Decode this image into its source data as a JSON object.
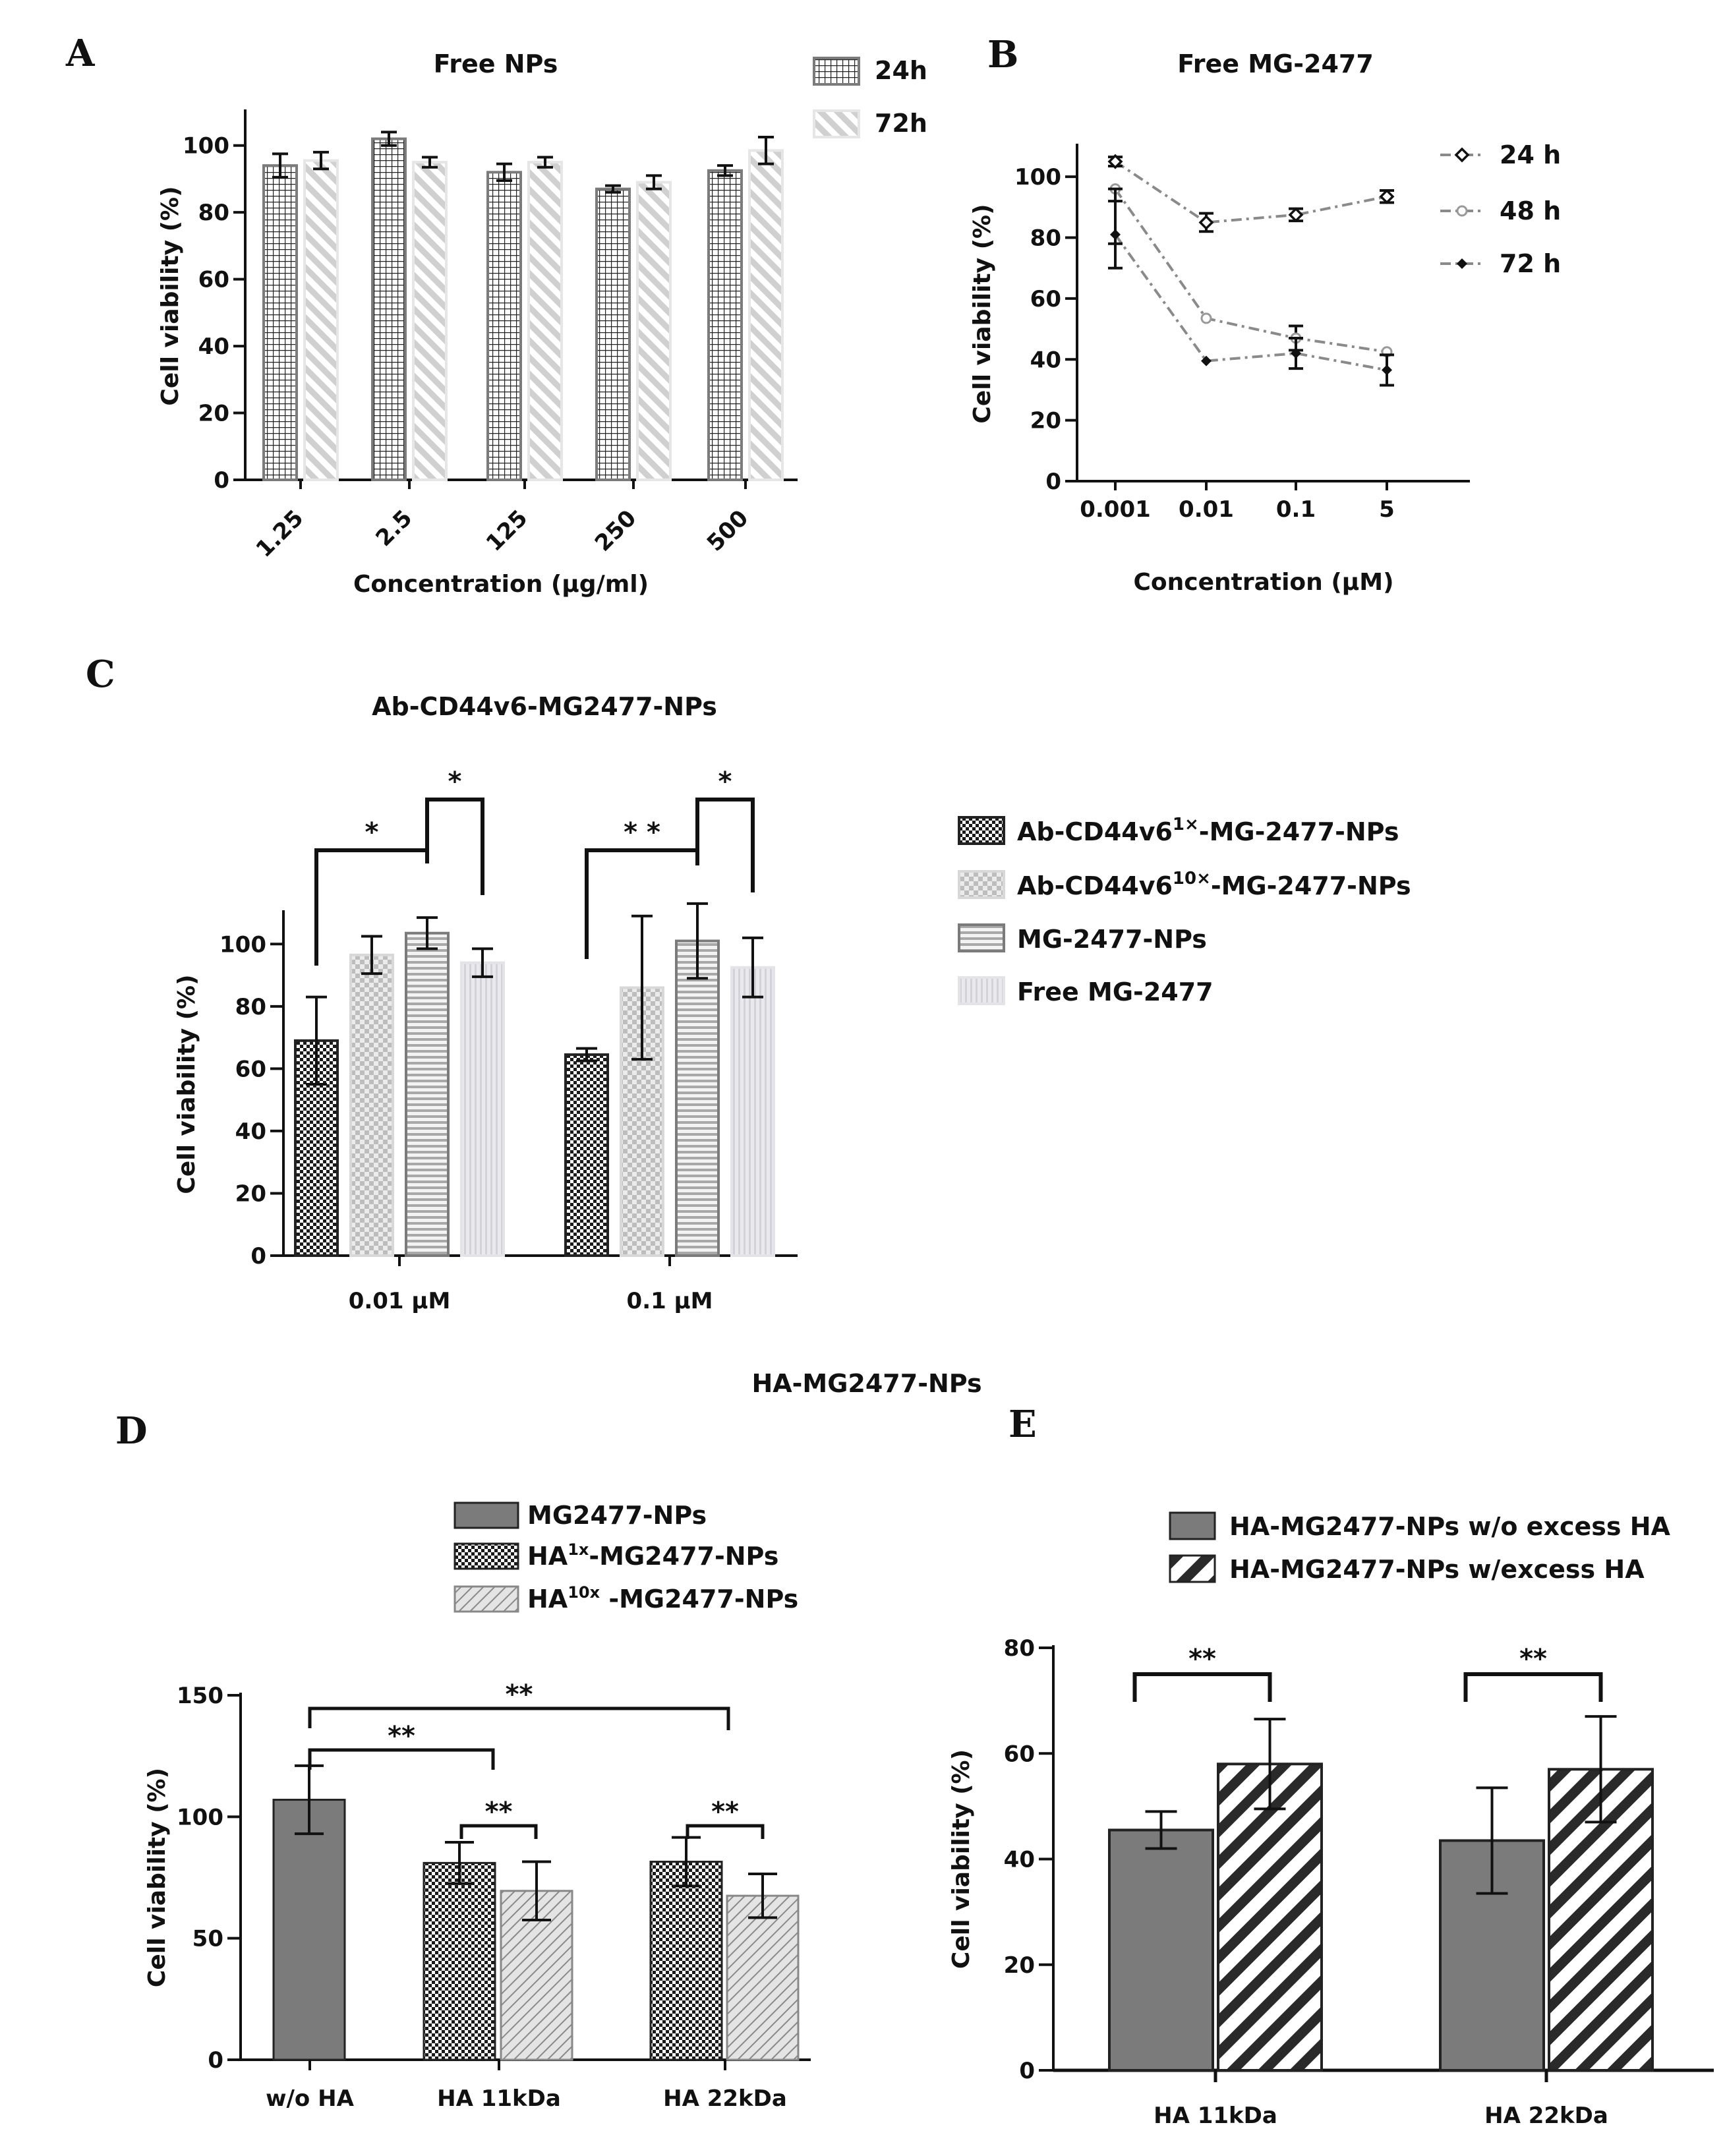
{
  "figure": {
    "panel_letters": [
      "A",
      "B",
      "C",
      "D",
      "E"
    ],
    "section_title_de": "HA-MG2477-NPs"
  },
  "colors": {
    "dark_gray": "#7b7b7b",
    "medium_gray": "#a9a9a9",
    "light_gray": "#d4d4d4",
    "very_light_gray": "#e4e4e8",
    "line_gray": "#8a8a8a"
  },
  "chart_data": [
    {
      "panel": "A",
      "type": "bar",
      "title": "Free NPs",
      "xlabel": "Concentration (µg/ml)",
      "ylabel": "Cell viability (%)",
      "ylim": [
        0,
        110
      ],
      "yticks": [
        "0",
        "20",
        "40",
        "60",
        "80",
        "100"
      ],
      "categories": [
        "1.25",
        "2.5",
        "125",
        "250",
        "500"
      ],
      "series": [
        {
          "name": "24h",
          "pattern": "grid",
          "values": [
            94,
            102,
            92,
            87,
            92.5
          ],
          "errors": [
            3.5,
            2,
            2.5,
            1,
            1.5
          ]
        },
        {
          "name": "72h",
          "pattern": "diag",
          "values": [
            95.5,
            95,
            95,
            89,
            98.5
          ],
          "errors": [
            2.5,
            1.5,
            1.5,
            2,
            4
          ]
        }
      ],
      "legend_position": "top-right"
    },
    {
      "panel": "B",
      "type": "line",
      "title": "Free MG-2477",
      "xlabel": "Concentration (µM)",
      "ylabel": "Cell viability (%)",
      "ylim": [
        0,
        110
      ],
      "yticks": [
        "0",
        "20",
        "40",
        "60",
        "80",
        "100"
      ],
      "categories": [
        "0.001",
        "0.01",
        "0.1",
        "5"
      ],
      "series": [
        {
          "name": "24 h",
          "marker": "open-diamond",
          "values": [
            105,
            85,
            87.5,
            93.5
          ],
          "errors": [
            1.5,
            3,
            2,
            2
          ]
        },
        {
          "name": "48 h",
          "marker": "open-circle",
          "values": [
            96,
            53.5,
            47,
            42.5
          ],
          "errors": [
            0,
            0,
            4,
            0
          ]
        },
        {
          "name": "72 h",
          "marker": "filled-diamond",
          "values": [
            81,
            39.5,
            42,
            36.5
          ],
          "errors": [
            11,
            0,
            5,
            5
          ]
        }
      ],
      "error_center_extra": [
        {
          "index": 0,
          "value": 87,
          "error": 9
        }
      ],
      "legend_position": "top-right"
    },
    {
      "panel": "C",
      "type": "bar",
      "title": "Ab-CD44v6-MG2477-NPs",
      "xlabel": "",
      "ylabel": "Cell viability (%)",
      "ylim": [
        0,
        110
      ],
      "yticks": [
        "0",
        "20",
        "40",
        "60",
        "80",
        "100"
      ],
      "categories": [
        "0.01 µM",
        "0.1 µM"
      ],
      "series": [
        {
          "name_main": "Ab-CD44v6",
          "name_sup": "1×",
          "name_rest": "-MG-2477-NPs",
          "pattern": "dense-check",
          "values": [
            69,
            64.5
          ],
          "errors": [
            14,
            2
          ]
        },
        {
          "name_main": "Ab-CD44v6",
          "name_sup": "10×",
          "name_rest": "-MG-2477-NPs",
          "pattern": "light-check",
          "values": [
            96.5,
            86
          ],
          "errors": [
            6,
            23
          ]
        },
        {
          "name_main": "MG-2477-NPs",
          "name_sup": "",
          "name_rest": "",
          "pattern": "hstripe",
          "values": [
            103.5,
            101
          ],
          "errors": [
            5,
            12
          ]
        },
        {
          "name_main": "Free MG-2477",
          "name_sup": "",
          "name_rest": "",
          "pattern": "vstripe",
          "values": [
            94,
            92.5
          ],
          "errors": [
            4.5,
            9.5
          ]
        }
      ],
      "significance": [
        {
          "group": 0,
          "from": 0,
          "to": 2,
          "label": "*"
        },
        {
          "group": 0,
          "from": 2,
          "to": 3,
          "label": "*"
        },
        {
          "group": 1,
          "from": 0,
          "to": 2,
          "label": "* *"
        },
        {
          "group": 1,
          "from": 2,
          "to": 3,
          "label": "*"
        }
      ],
      "legend_position": "right"
    },
    {
      "panel": "D",
      "type": "bar",
      "title": "",
      "xlabel": "",
      "ylabel": "Cell viability (%)",
      "ylim": [
        0,
        150
      ],
      "yticks": [
        "0",
        "50",
        "100",
        "150"
      ],
      "categories": [
        "w/o HA",
        "HA 11kDa",
        "HA 22kDa"
      ],
      "series": [
        {
          "name_main": "MG2477-NPs",
          "name_sup": "",
          "name_rest": "",
          "pattern": "solid"
        },
        {
          "name_main": "HA",
          "name_sup": "1x",
          "name_rest": "-MG2477-NPs",
          "pattern": "dense-check"
        },
        {
          "name_main": "HA",
          "name_sup": "10x",
          "name_rest": " -MG2477-NPs",
          "pattern": "back-diag"
        }
      ],
      "bars": [
        {
          "category": 0,
          "series": 0,
          "value": 107,
          "error": 14
        },
        {
          "category": 1,
          "series": 1,
          "value": 81,
          "error": 8.5
        },
        {
          "category": 1,
          "series": 2,
          "value": 69.5,
          "error": 12
        },
        {
          "category": 2,
          "series": 1,
          "value": 81.5,
          "error": 10
        },
        {
          "category": 2,
          "series": 2,
          "value": 67.5,
          "error": 9
        }
      ],
      "significance": [
        "**",
        "**",
        "**",
        "**"
      ],
      "legend_position": "top"
    },
    {
      "panel": "E",
      "type": "bar",
      "title": "",
      "xlabel": "",
      "ylabel": "Cell viability (%)",
      "ylim": [
        0,
        80
      ],
      "yticks": [
        "0",
        "20",
        "40",
        "60",
        "80"
      ],
      "categories": [
        "HA 11kDa",
        "HA 22kDa"
      ],
      "series": [
        {
          "name": "HA-MG2477-NPs w/o excess HA",
          "pattern": "solid",
          "values": [
            45.5,
            43.5
          ],
          "errors": [
            3.5,
            10
          ]
        },
        {
          "name": "HA-MG2477-NPs w/excess HA",
          "pattern": "wide-diag",
          "values": [
            58,
            57
          ],
          "errors": [
            8.5,
            10
          ]
        }
      ],
      "significance": [
        "**",
        "**"
      ],
      "legend_position": "top"
    }
  ]
}
